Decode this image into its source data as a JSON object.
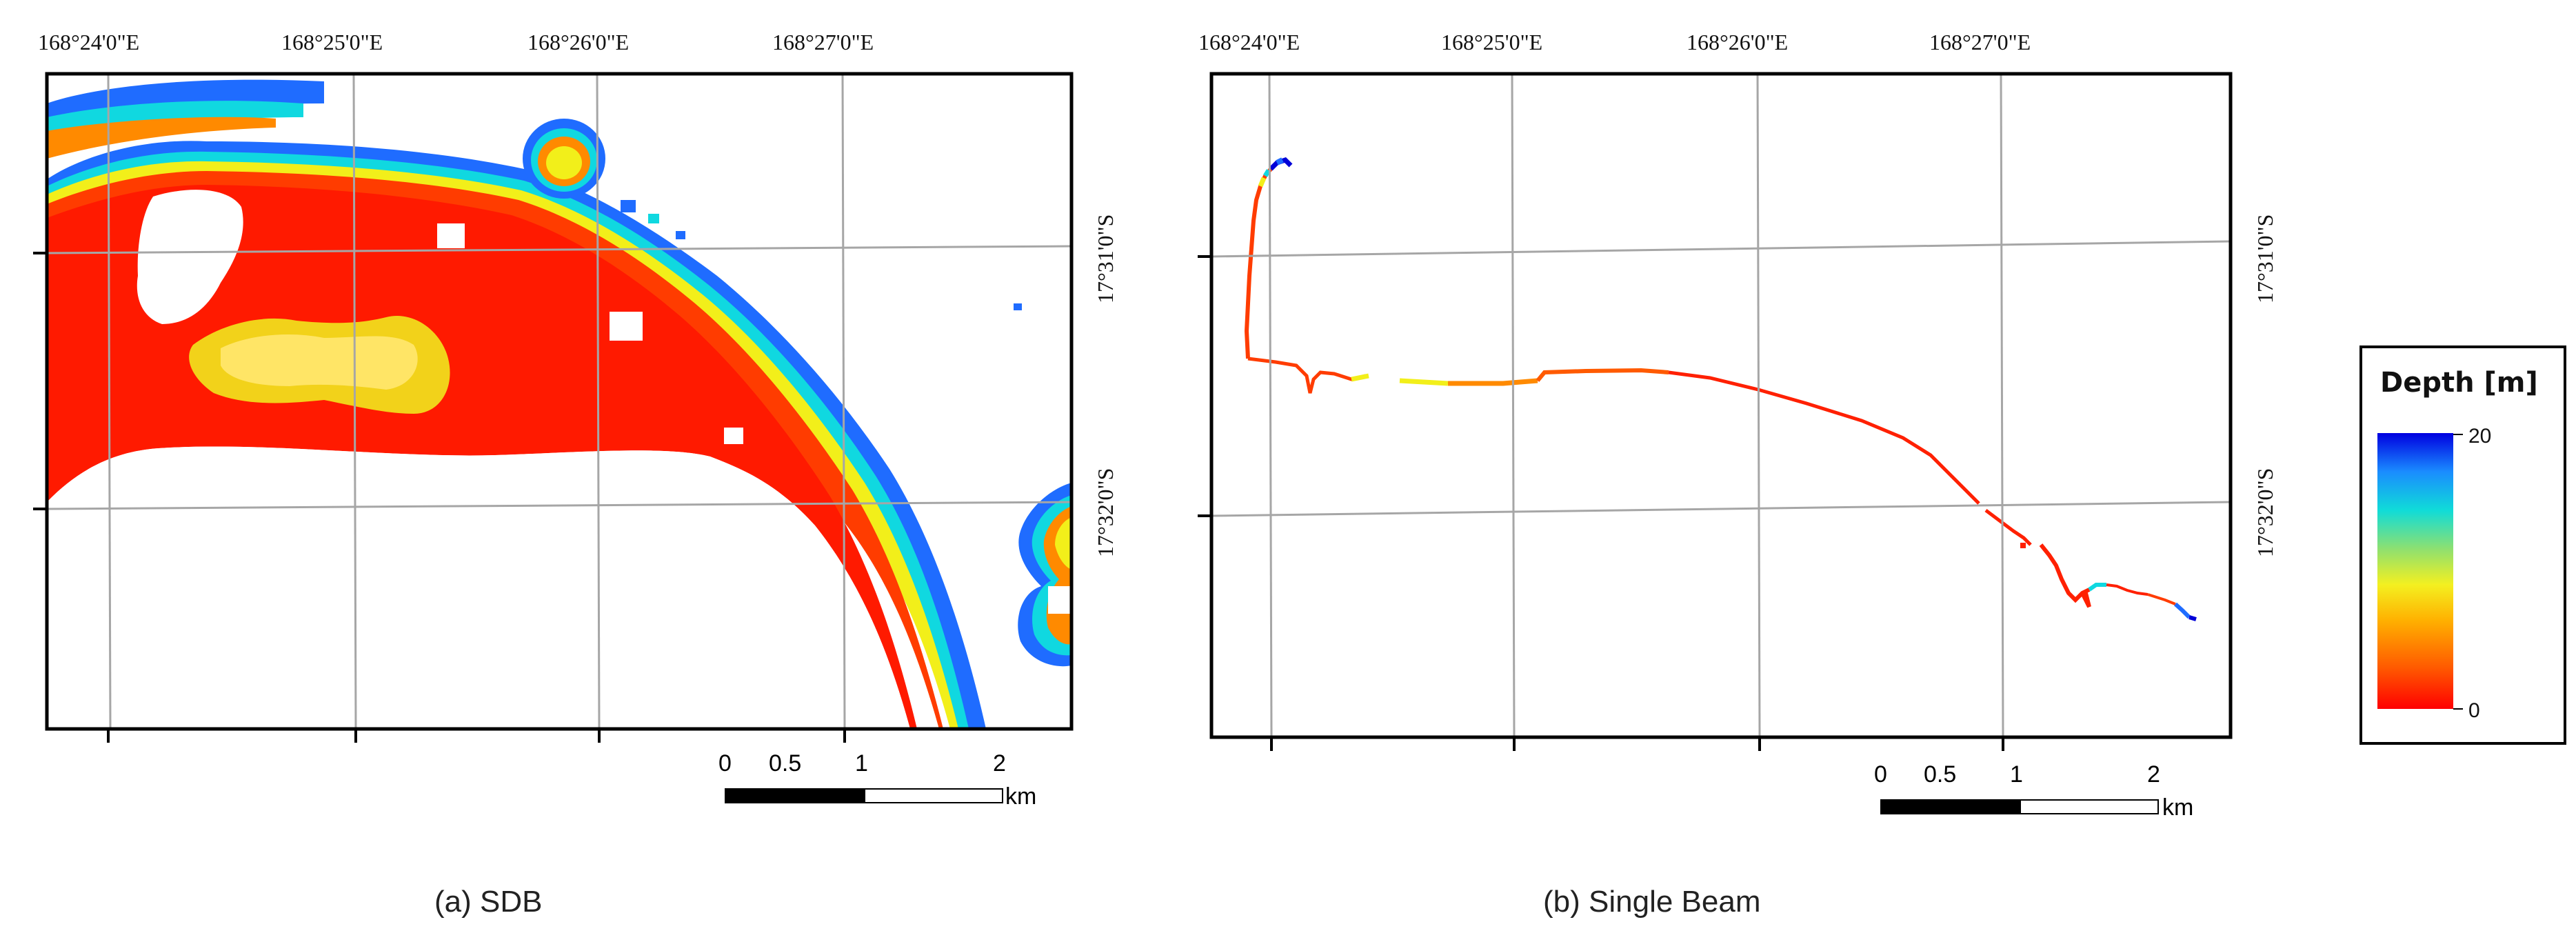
{
  "colors": {
    "shallow": "#ff1a00",
    "red_orange": "#ff3c00",
    "orange": "#ff8a00",
    "yellow": "#f2ef1a",
    "green": "#7fd860",
    "cyan": "#10d8e0",
    "blue": "#1f6cff",
    "deep": "#0000d8",
    "frame": "#000000",
    "grid": "#a6a6a6"
  },
  "panels": [
    {
      "id": "a",
      "caption": "(a) SDB",
      "top_longitudes": [
        "168°24'0\"E",
        "168°25'0\"E",
        "168°26'0\"E",
        "168°27'0\"E"
      ],
      "right_latitudes": [
        "17°31'0\"S",
        "17°32'0\"S"
      ],
      "scalebar": {
        "ticks": [
          "0",
          "0.5",
          "1",
          "2"
        ],
        "unit": "km"
      }
    },
    {
      "id": "b",
      "caption": "(b) Single Beam",
      "top_longitudes": [
        "168°24'0\"E",
        "168°25'0\"E",
        "168°26'0\"E",
        "168°27'0\"E"
      ],
      "right_latitudes": [
        "17°31'0\"S",
        "17°32'0\"S"
      ],
      "scalebar": {
        "ticks": [
          "0",
          "0.5",
          "1",
          "2"
        ],
        "unit": "km"
      }
    }
  ],
  "legend": {
    "title": "Depth [m]",
    "max_label": "20",
    "min_label": "0",
    "max_value": 20,
    "min_value": 0
  }
}
